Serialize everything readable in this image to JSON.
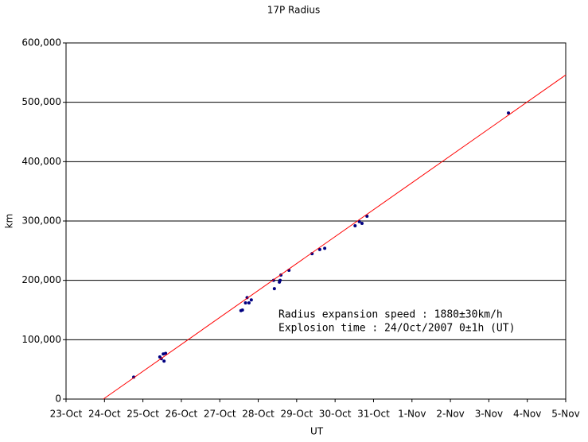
{
  "chart_data": {
    "type": "scatter",
    "title": "17P Radius",
    "x_label": "UT",
    "y_label": "km",
    "xlim": [
      0,
      13
    ],
    "xticks": [
      {
        "value": 0,
        "label": "23-Oct"
      },
      {
        "value": 1,
        "label": "24-Oct"
      },
      {
        "value": 2,
        "label": "25-Oct"
      },
      {
        "value": 3,
        "label": "26-Oct"
      },
      {
        "value": 4,
        "label": "27-Oct"
      },
      {
        "value": 5,
        "label": "28-Oct"
      },
      {
        "value": 6,
        "label": "29-Oct"
      },
      {
        "value": 7,
        "label": "30-Oct"
      },
      {
        "value": 8,
        "label": "31-Oct"
      },
      {
        "value": 9,
        "label": "1-Nov"
      },
      {
        "value": 10,
        "label": "2-Nov"
      },
      {
        "value": 11,
        "label": "3-Nov"
      },
      {
        "value": 12,
        "label": "4-Nov"
      },
      {
        "value": 13,
        "label": "5-Nov"
      }
    ],
    "ylim": [
      0,
      600000
    ],
    "yticks": [
      0,
      {
        "value": 100000,
        "label": "100,000"
      },
      {
        "value": 200000,
        "label": "200,000"
      },
      {
        "value": 300000,
        "label": "300,000"
      },
      {
        "value": 400000,
        "label": "400,000"
      },
      {
        "value": 500000,
        "label": "500,000"
      },
      {
        "value": 600000,
        "label": "600,000"
      }
    ],
    "grid": true,
    "series": [
      {
        "name": "Radius",
        "color": "#000080",
        "x": [
          1.76,
          2.44,
          2.48,
          2.53,
          2.55,
          2.59,
          4.55,
          4.59,
          4.67,
          4.71,
          4.76,
          4.82,
          5.4,
          5.42,
          5.55,
          5.57,
          5.59,
          5.8,
          6.4,
          6.6,
          6.73,
          7.52,
          7.63,
          7.7,
          7.83,
          11.51
        ],
        "values": [
          37000,
          71000,
          68000,
          76000,
          64000,
          77000,
          149000,
          150000,
          162000,
          171000,
          162000,
          167000,
          200000,
          186000,
          197000,
          200000,
          209000,
          217000,
          245000,
          252000,
          254000,
          292000,
          299000,
          296000,
          308000,
          482000
        ]
      },
      {
        "name": "Fit",
        "color": "#ff0000",
        "x": [
          0.97,
          13
        ],
        "values": [
          0,
          546000
        ]
      }
    ],
    "annotations": [
      "Radius expansion speed : 1880±30km/h",
      "Explosion time : 24/Oct/2007 0±1h (UT)"
    ]
  }
}
